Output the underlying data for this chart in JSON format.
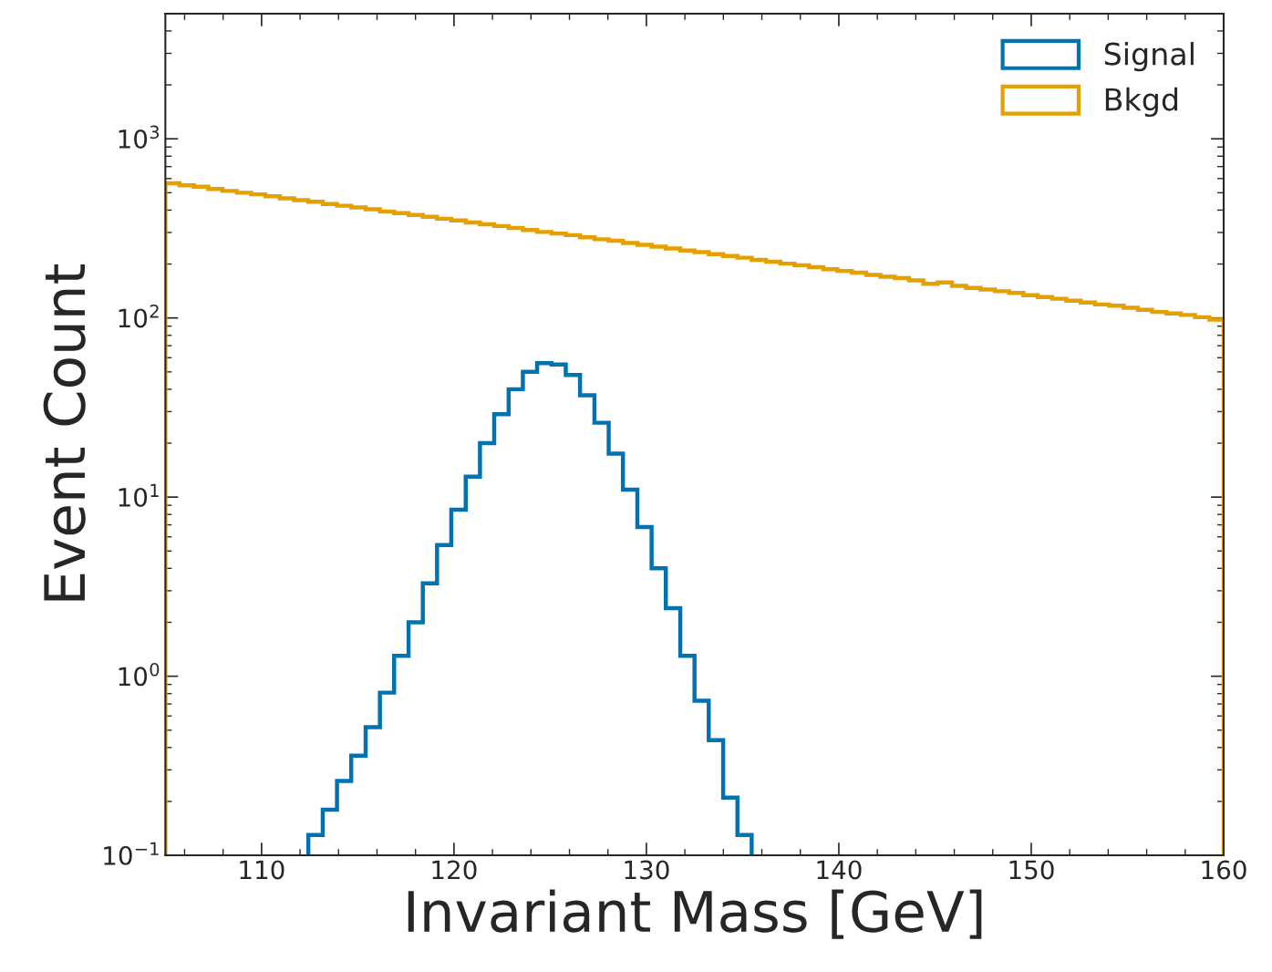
{
  "chart_data": {
    "type": "histogram",
    "xlabel": "Invariant Mass [GeV]",
    "ylabel": "Event Count",
    "log": "y",
    "bins": [
      105,
      105.74,
      106.49,
      107.23,
      107.97,
      108.72,
      109.46,
      110.2,
      110.95,
      111.69,
      112.43,
      113.18,
      113.92,
      114.66,
      115.41,
      116.15,
      116.89,
      117.64,
      118.38,
      119.12,
      119.86,
      120.61,
      121.35,
      122.09,
      122.84,
      123.58,
      124.32,
      125.07,
      125.81,
      126.55,
      127.3,
      128.04,
      128.78,
      129.53,
      130.27,
      131.01,
      131.76,
      132.5,
      133.24,
      133.99,
      134.73,
      135.47,
      136.22,
      136.96,
      137.7,
      138.45,
      139.19,
      139.93,
      140.68,
      141.42,
      142.16,
      142.91,
      143.65,
      144.39,
      145.14,
      145.88,
      146.62,
      147.36,
      148.11,
      148.85,
      149.59,
      150.34,
      151.08,
      151.82,
      152.57,
      153.31,
      154.05,
      154.8,
      155.54,
      156.28,
      157.03,
      157.77,
      158.51,
      159.26,
      160
    ],
    "series": [
      {
        "name": "Signal",
        "color": "#0072b2",
        "bins": [
          112.43,
          113.18,
          113.92,
          114.66,
          115.41,
          116.15,
          116.89,
          117.64,
          118.38,
          119.12,
          119.86,
          120.61,
          121.35,
          122.09,
          122.84,
          123.58,
          124.32,
          125.07,
          125.81,
          126.55,
          127.3,
          128.04,
          128.78,
          129.53,
          130.27,
          131.01,
          131.76,
          132.5,
          133.24,
          133.99,
          134.73,
          135.47
        ],
        "values": [
          0.13,
          0.18,
          0.26,
          0.36,
          0.52,
          0.81,
          1.3,
          2.0,
          3.3,
          5.4,
          8.5,
          13,
          20,
          29,
          40,
          50,
          56,
          55,
          48,
          37,
          26,
          17.5,
          11,
          6.8,
          4.0,
          2.4,
          1.3,
          0.73,
          0.44,
          0.21,
          0.13
        ]
      },
      {
        "name": "Bkgd",
        "color": "#e69f00",
        "values": [
          565,
          550,
          540,
          525,
          512,
          500,
          490,
          478,
          465,
          455,
          445,
          433,
          423,
          414,
          404,
          393,
          385,
          376,
          367,
          358,
          350,
          341,
          333,
          326,
          318,
          310,
          302,
          296,
          290,
          282,
          275,
          270,
          262,
          256,
          250,
          244,
          238,
          233,
          227,
          222,
          217,
          211,
          206,
          201,
          197,
          192,
          187,
          183,
          179,
          174,
          170,
          167,
          162,
          155,
          158,
          151,
          147,
          144,
          141,
          138,
          134,
          131,
          128,
          125,
          122,
          119,
          117,
          114,
          111,
          108,
          106,
          104,
          101,
          98
        ]
      }
    ],
    "xlim": [
      105,
      160
    ],
    "ylim": [
      0.1,
      5000
    ],
    "xticks": [
      110,
      120,
      130,
      140,
      150,
      160
    ],
    "yticks": [
      {
        "value": 0.1,
        "label": "10$^{−1}$"
      },
      {
        "value": 1,
        "label": "10$^{0}$"
      },
      {
        "value": 10,
        "label": "10$^{1}$"
      },
      {
        "value": 100,
        "label": "10$^{2}$"
      },
      {
        "value": 1000,
        "label": "10$^{3}$"
      }
    ],
    "grid": false,
    "legend": "top right"
  }
}
